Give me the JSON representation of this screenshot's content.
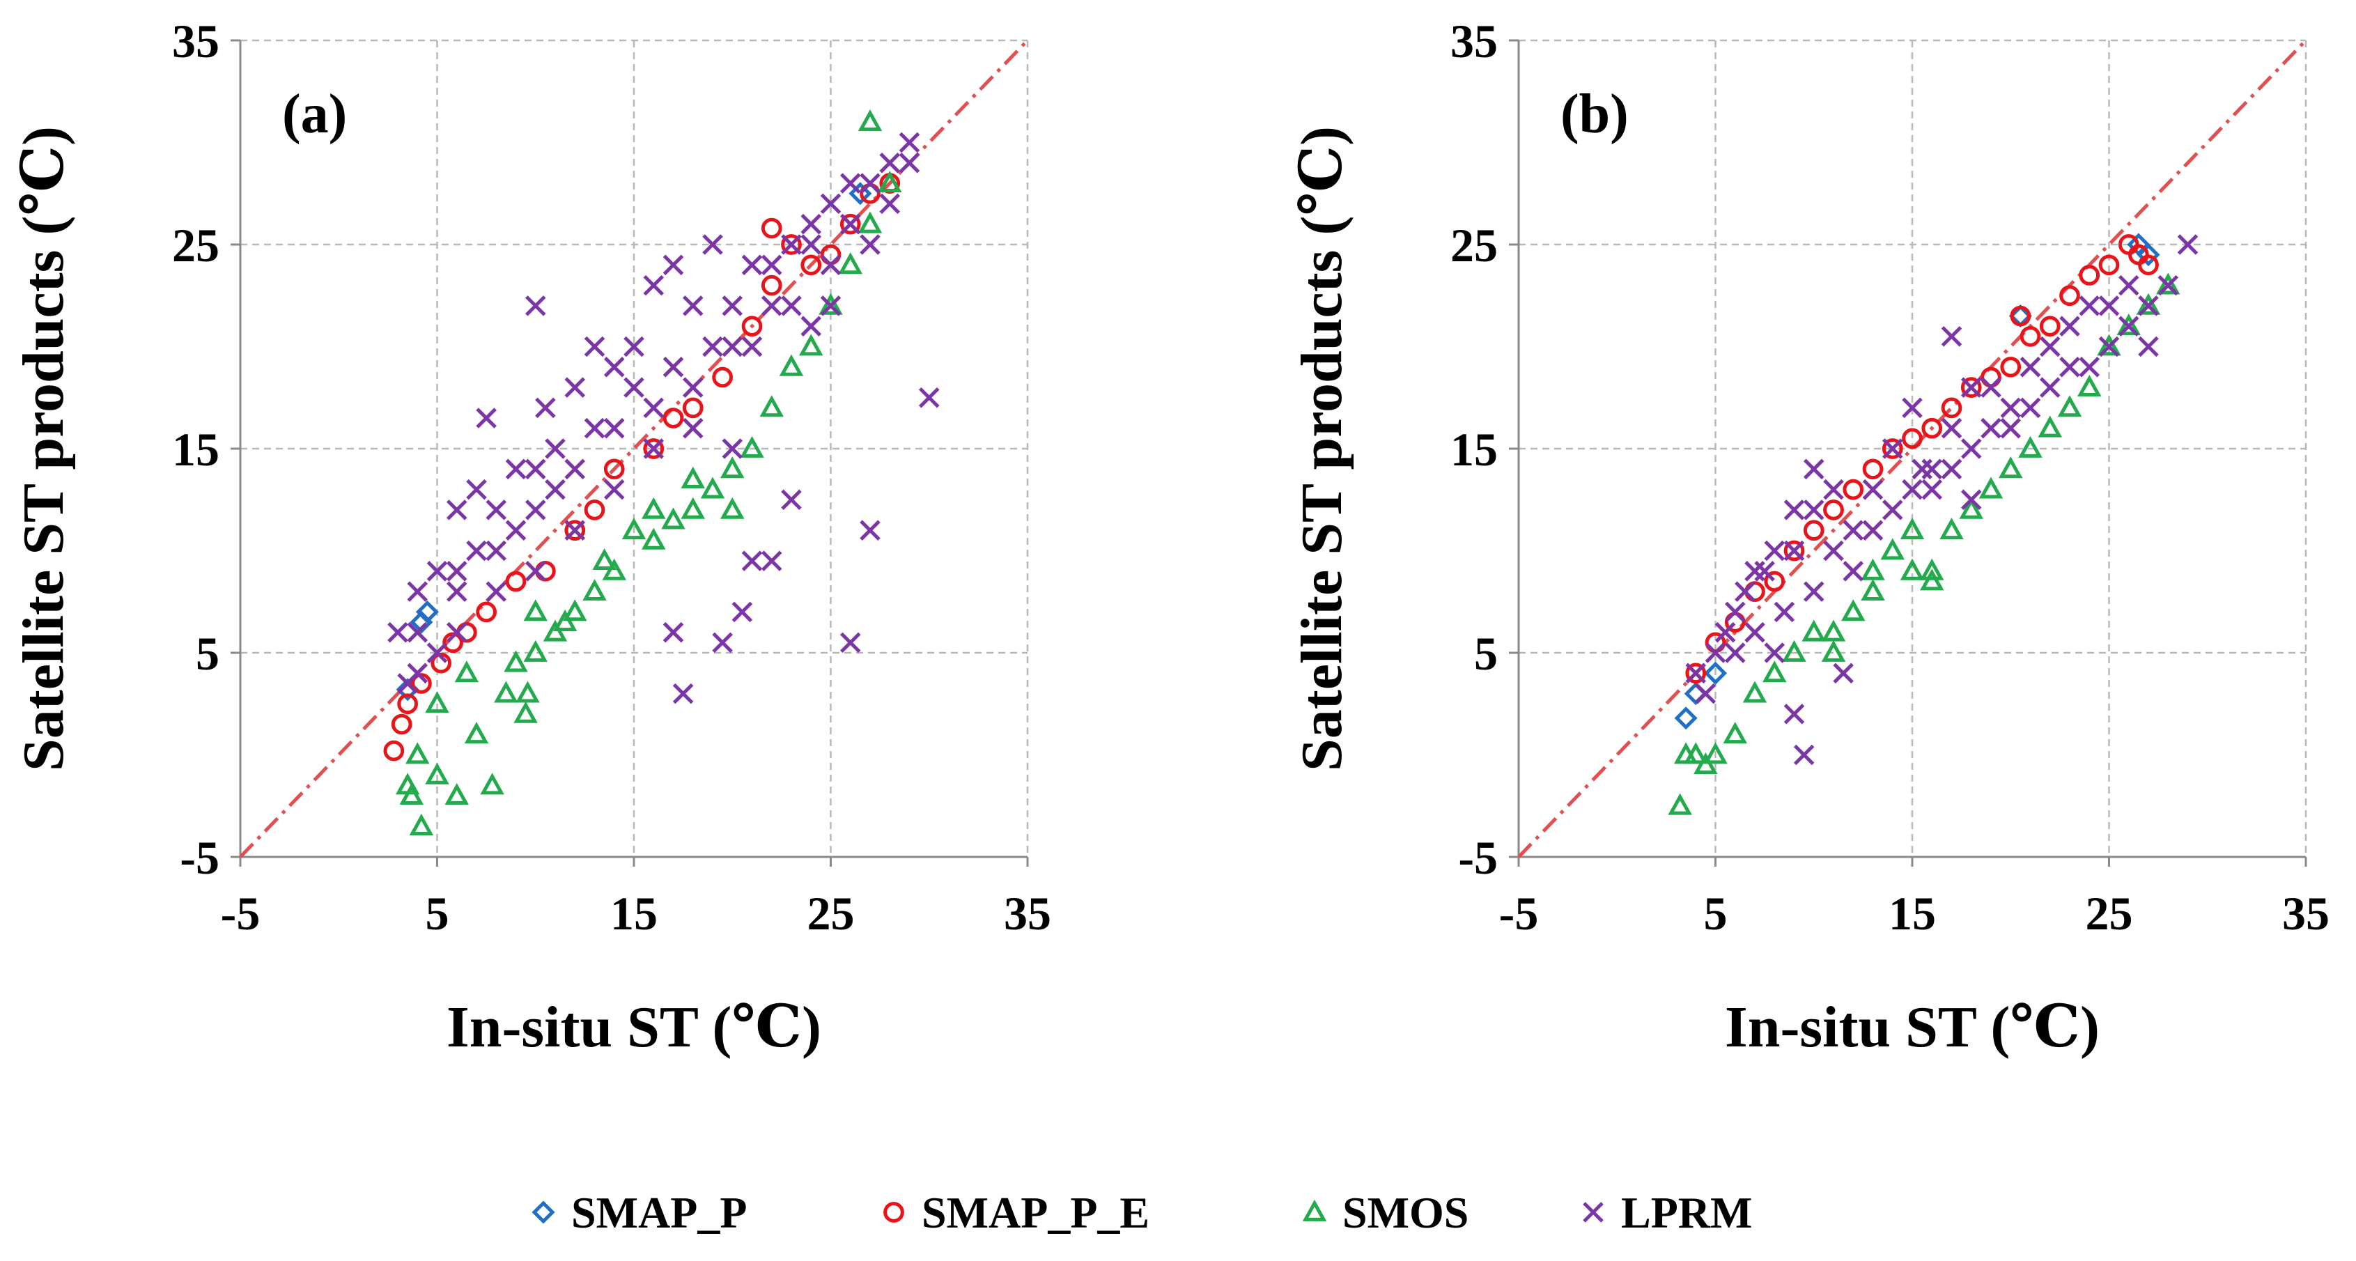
{
  "figure": {
    "legend": [
      {
        "name": "SMAP_P",
        "marker": "diamond",
        "color": "#1f6fc6"
      },
      {
        "name": "SMAP_P_E",
        "marker": "circle",
        "color": "#e8141a"
      },
      {
        "name": "SMOS",
        "marker": "triangle",
        "color": "#22aa4c"
      },
      {
        "name": "LPRM",
        "marker": "x",
        "color": "#7b35a6"
      }
    ],
    "one_to_one_color": "#e05050"
  },
  "chart_data": [
    {
      "type": "scatter",
      "panel_label": "(a)",
      "xlabel": "In-situ ST (℃)",
      "ylabel": "Satellite ST products (℃)",
      "xlim": [
        -5,
        35
      ],
      "ylim": [
        -5,
        35
      ],
      "xticks": [
        "-5",
        "5",
        "15",
        "25",
        "35"
      ],
      "yticks": [
        "-5",
        "5",
        "15",
        "25",
        "35"
      ],
      "grid": true,
      "one_to_one_line": true,
      "series": [
        {
          "name": "SMAP_P",
          "points": [
            [
              4.5,
              7
            ],
            [
              4.2,
              6.5
            ],
            [
              3.5,
              3.2
            ],
            [
              26.5,
              27.5
            ]
          ]
        },
        {
          "name": "SMAP_P_E",
          "points": [
            [
              2.8,
              0.2
            ],
            [
              3.2,
              1.5
            ],
            [
              3.5,
              2.5
            ],
            [
              4.2,
              3.5
            ],
            [
              5.2,
              4.5
            ],
            [
              5.8,
              5.5
            ],
            [
              6.5,
              6
            ],
            [
              7.5,
              7
            ],
            [
              9,
              8.5
            ],
            [
              10.5,
              9
            ],
            [
              12,
              11
            ],
            [
              13,
              12
            ],
            [
              14,
              14
            ],
            [
              16,
              15
            ],
            [
              17,
              16.5
            ],
            [
              18,
              17
            ],
            [
              19.5,
              18.5
            ],
            [
              21,
              21
            ],
            [
              22,
              23
            ],
            [
              22,
              25.8
            ],
            [
              23,
              25
            ],
            [
              24,
              24
            ],
            [
              25,
              24.5
            ],
            [
              26,
              26
            ],
            [
              27,
              27.5
            ],
            [
              28,
              28
            ]
          ]
        },
        {
          "name": "SMOS",
          "points": [
            [
              3.5,
              -1.5
            ],
            [
              3.7,
              -2
            ],
            [
              4.2,
              -3.5
            ],
            [
              5,
              -1
            ],
            [
              6,
              -2
            ],
            [
              7,
              1
            ],
            [
              7.8,
              -1.5
            ],
            [
              8.5,
              3
            ],
            [
              9.5,
              2
            ],
            [
              9.6,
              3
            ],
            [
              9,
              4.5
            ],
            [
              10,
              5
            ],
            [
              11,
              6
            ],
            [
              11.5,
              6.5
            ],
            [
              12,
              7
            ],
            [
              13,
              8
            ],
            [
              14,
              9
            ],
            [
              15,
              11
            ],
            [
              16,
              12
            ],
            [
              17,
              11.5
            ],
            [
              18,
              12
            ],
            [
              19,
              13
            ],
            [
              20,
              14
            ],
            [
              21,
              15
            ],
            [
              22,
              17
            ],
            [
              23,
              19
            ],
            [
              24,
              20
            ],
            [
              25,
              22
            ],
            [
              26,
              24
            ],
            [
              27,
              26
            ],
            [
              27,
              31
            ],
            [
              28,
              28
            ],
            [
              20,
              12
            ],
            [
              18,
              13.5
            ],
            [
              16,
              10.5
            ],
            [
              13.5,
              9.5
            ],
            [
              10,
              7
            ],
            [
              6.5,
              4
            ],
            [
              5,
              2.5
            ],
            [
              4,
              0
            ]
          ]
        },
        {
          "name": "LPRM",
          "points": [
            [
              3,
              6
            ],
            [
              4,
              8
            ],
            [
              5,
              9
            ],
            [
              6,
              9
            ],
            [
              7,
              10
            ],
            [
              7.5,
              16.5
            ],
            [
              8,
              12
            ],
            [
              9,
              11
            ],
            [
              10,
              14
            ],
            [
              10,
              22
            ],
            [
              10.5,
              17
            ],
            [
              11,
              15
            ],
            [
              12,
              18
            ],
            [
              13,
              20
            ],
            [
              14,
              19
            ],
            [
              15,
              20
            ],
            [
              16,
              23
            ],
            [
              17,
              24
            ],
            [
              18,
              22
            ],
            [
              19,
              25
            ],
            [
              20,
              22
            ],
            [
              21,
              24
            ],
            [
              22,
              24
            ],
            [
              23,
              25
            ],
            [
              24,
              26
            ],
            [
              25,
              27
            ],
            [
              26,
              26
            ],
            [
              27,
              28
            ],
            [
              28,
              29
            ],
            [
              29,
              30
            ],
            [
              30,
              17.5
            ],
            [
              27,
              11
            ],
            [
              26,
              5.5
            ],
            [
              17,
              6
            ],
            [
              17.5,
              3
            ],
            [
              19.5,
              5.5
            ],
            [
              20.5,
              7
            ],
            [
              21,
              9.5
            ],
            [
              22,
              9.5
            ],
            [
              23,
              12.5
            ],
            [
              25,
              22
            ],
            [
              24,
              21
            ],
            [
              20,
              15
            ],
            [
              18,
              16
            ],
            [
              16,
              15
            ],
            [
              14,
              13
            ],
            [
              12,
              11
            ],
            [
              10,
              9
            ],
            [
              8,
              8
            ],
            [
              6,
              6
            ],
            [
              5,
              5
            ],
            [
              4,
              4
            ],
            [
              3.5,
              3.5
            ],
            [
              6,
              12
            ],
            [
              7,
              13
            ],
            [
              9,
              14
            ],
            [
              11,
              13
            ],
            [
              13,
              16
            ],
            [
              15,
              18
            ],
            [
              17,
              19
            ],
            [
              19,
              20
            ],
            [
              21,
              20
            ],
            [
              23,
              22
            ],
            [
              25,
              24
            ],
            [
              27,
              25
            ],
            [
              28,
              27
            ],
            [
              29,
              29
            ],
            [
              26,
              28
            ],
            [
              24,
              25
            ],
            [
              22,
              22
            ],
            [
              20,
              20
            ],
            [
              18,
              18
            ],
            [
              16,
              17
            ],
            [
              14,
              16
            ],
            [
              12,
              14
            ],
            [
              10,
              12
            ],
            [
              8,
              10
            ],
            [
              6,
              8
            ],
            [
              4,
              6
            ]
          ]
        }
      ]
    },
    {
      "type": "scatter",
      "panel_label": "(b)",
      "xlabel": "In-situ ST (℃)",
      "ylabel": "Satellite ST products (℃)",
      "xlim": [
        -5,
        35
      ],
      "ylim": [
        -5,
        35
      ],
      "xticks": [
        "-5",
        "5",
        "15",
        "25",
        "35"
      ],
      "yticks": [
        "-5",
        "5",
        "15",
        "25",
        "35"
      ],
      "grid": true,
      "one_to_one_line": true,
      "series": [
        {
          "name": "SMAP_P",
          "points": [
            [
              3.5,
              1.8
            ],
            [
              4,
              3
            ],
            [
              5,
              4
            ],
            [
              20.5,
              21.5
            ],
            [
              26.5,
              25
            ],
            [
              27,
              24.5
            ]
          ]
        },
        {
          "name": "SMAP_P_E",
          "points": [
            [
              4,
              4
            ],
            [
              5,
              5.5
            ],
            [
              6,
              6.5
            ],
            [
              7,
              8
            ],
            [
              8,
              8.5
            ],
            [
              9,
              10
            ],
            [
              10,
              11
            ],
            [
              11,
              12
            ],
            [
              12,
              13
            ],
            [
              13,
              14
            ],
            [
              14,
              15
            ],
            [
              15,
              15.5
            ],
            [
              16,
              16
            ],
            [
              17,
              17
            ],
            [
              18,
              18
            ],
            [
              19,
              18.5
            ],
            [
              20,
              19
            ],
            [
              20.5,
              21.5
            ],
            [
              21,
              20.5
            ],
            [
              22,
              21
            ],
            [
              23,
              22.5
            ],
            [
              24,
              23.5
            ],
            [
              25,
              24
            ],
            [
              26,
              25
            ],
            [
              26.5,
              24.5
            ],
            [
              27,
              24
            ]
          ]
        },
        {
          "name": "SMOS",
          "points": [
            [
              3.2,
              -2.5
            ],
            [
              3.5,
              0
            ],
            [
              4,
              0
            ],
            [
              4.5,
              -0.5
            ],
            [
              5,
              0
            ],
            [
              6,
              1
            ],
            [
              7,
              3
            ],
            [
              8,
              4
            ],
            [
              9,
              5
            ],
            [
              10,
              6
            ],
            [
              11,
              5
            ],
            [
              12,
              7
            ],
            [
              13,
              9
            ],
            [
              14,
              10
            ],
            [
              15,
              11
            ],
            [
              16,
              9
            ],
            [
              17,
              11
            ],
            [
              18,
              12
            ],
            [
              19,
              13
            ],
            [
              20,
              14
            ],
            [
              21,
              15
            ],
            [
              22,
              16
            ],
            [
              23,
              17
            ],
            [
              24,
              18
            ],
            [
              25,
              20
            ],
            [
              26,
              21
            ],
            [
              27,
              22
            ],
            [
              28,
              23
            ],
            [
              16,
              8.5
            ],
            [
              15,
              9
            ],
            [
              13,
              8
            ],
            [
              11,
              6
            ]
          ]
        },
        {
          "name": "LPRM",
          "points": [
            [
              4,
              4
            ],
            [
              4.5,
              3
            ],
            [
              5,
              5
            ],
            [
              5.5,
              6
            ],
            [
              6,
              7
            ],
            [
              6.5,
              8
            ],
            [
              7,
              6
            ],
            [
              7.5,
              9
            ],
            [
              8,
              5
            ],
            [
              8.5,
              7
            ],
            [
              9,
              10
            ],
            [
              9,
              2
            ],
            [
              9.5,
              0
            ],
            [
              10,
              12
            ],
            [
              10,
              14
            ],
            [
              11,
              10
            ],
            [
              11.5,
              4
            ],
            [
              12,
              11
            ],
            [
              13,
              13
            ],
            [
              14,
              12
            ],
            [
              15,
              17
            ],
            [
              15.5,
              14
            ],
            [
              16,
              14
            ],
            [
              17,
              16
            ],
            [
              17,
              20.5
            ],
            [
              18,
              15
            ],
            [
              19,
              18
            ],
            [
              20,
              17
            ],
            [
              21,
              19
            ],
            [
              22,
              20
            ],
            [
              23,
              21
            ],
            [
              24,
              19
            ],
            [
              25,
              22
            ],
            [
              26,
              21
            ],
            [
              27,
              22
            ],
            [
              28,
              23
            ],
            [
              29,
              25
            ],
            [
              18,
              12.5
            ],
            [
              16,
              13
            ],
            [
              14,
              15
            ],
            [
              12,
              9
            ],
            [
              10,
              8
            ],
            [
              8,
              10
            ],
            [
              6,
              5
            ],
            [
              7,
              9
            ],
            [
              9,
              12
            ],
            [
              11,
              13
            ],
            [
              13,
              11
            ],
            [
              15,
              13
            ],
            [
              17,
              14
            ],
            [
              19,
              16
            ],
            [
              21,
              17
            ],
            [
              23,
              19
            ],
            [
              25,
              20
            ],
            [
              27,
              20
            ],
            [
              26,
              23
            ],
            [
              24,
              22
            ],
            [
              22,
              18
            ],
            [
              20,
              16
            ],
            [
              18,
              18
            ]
          ]
        }
      ]
    }
  ]
}
